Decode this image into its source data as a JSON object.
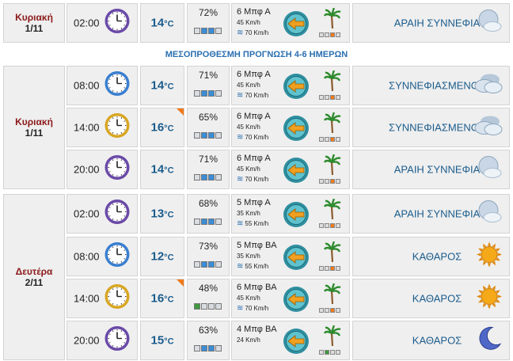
{
  "banner": "ΜΕΣΟΠΡΟΘΕΣΜΗ ΠΡΟΓΝΩΣΗ 4-6 ΗΜΕΡΩΝ",
  "temp_unit": "°C",
  "days": [
    {
      "name": "Κυριακή",
      "date": "1/11"
    },
    {
      "name": "Κυριακή",
      "date": "1/11"
    },
    {
      "name": "Δευτέρα",
      "date": "2/11"
    }
  ],
  "rows": [
    {
      "time": "02:00",
      "temp": "14",
      "hum": "72%",
      "hum_level": 2,
      "beaufort": "6 Μπφ Α",
      "speed": "45 Km/h",
      "gust": "70 Km/h",
      "desc": "ΑΡΑΙΗ ΣΥΝΝΕΦΙΑ",
      "icon": "moon-clouds-icon",
      "hot": false,
      "bf_level": 2,
      "bf_color": "orange"
    },
    {
      "time": "08:00",
      "temp": "14",
      "hum": "71%",
      "hum_level": 2,
      "beaufort": "6 Μπφ Α",
      "speed": "45 Km/h",
      "gust": "70 Km/h",
      "desc": "ΣΥΝΝΕΦΙΑΣΜΕΝΟΣ",
      "icon": "cloudy-icon",
      "hot": false,
      "bf_level": 2,
      "bf_color": "orange"
    },
    {
      "time": "14:00",
      "temp": "16",
      "hum": "65%",
      "hum_level": 2,
      "beaufort": "6 Μπφ Α",
      "speed": "45 Km/h",
      "gust": "70 Km/h",
      "desc": "ΣΥΝΝΕΦΙΑΣΜΕΝΟΣ",
      "icon": "cloudy-icon",
      "hot": true,
      "bf_level": 2,
      "bf_color": "orange"
    },
    {
      "time": "20:00",
      "temp": "14",
      "hum": "71%",
      "hum_level": 2,
      "beaufort": "6 Μπφ Α",
      "speed": "45 Km/h",
      "gust": "70 Km/h",
      "desc": "ΑΡΑΙΗ ΣΥΝΝΕΦΙΑ",
      "icon": "moon-clouds-icon",
      "hot": false,
      "bf_level": 2,
      "bf_color": "orange"
    },
    {
      "time": "02:00",
      "temp": "13",
      "hum": "68%",
      "hum_level": 2,
      "beaufort": "5 Μπφ Α",
      "speed": "35 Km/h",
      "gust": "55 Km/h",
      "desc": "ΑΡΑΙΗ ΣΥΝΝΕΦΙΑ",
      "icon": "moon-clouds-icon",
      "hot": false,
      "bf_level": 2,
      "bf_color": "orange"
    },
    {
      "time": "08:00",
      "temp": "12",
      "hum": "73%",
      "hum_level": 2,
      "beaufort": "5 Μπφ ΒΑ",
      "speed": "35 Km/h",
      "gust": "55 Km/h",
      "desc": "ΚΑΘΑΡΟΣ",
      "icon": "sun-icon",
      "hot": false,
      "bf_level": 2,
      "bf_color": "orange"
    },
    {
      "time": "14:00",
      "temp": "16",
      "hum": "48%",
      "hum_level": 1,
      "beaufort": "6 Μπφ ΒΑ",
      "speed": "45 Km/h",
      "gust": "70 Km/h",
      "desc": "ΚΑΘΑΡΟΣ",
      "icon": "sun-icon",
      "hot": true,
      "bf_level": 2,
      "bf_color": "orange"
    },
    {
      "time": "20:00",
      "temp": "15",
      "hum": "63%",
      "hum_level": 2,
      "beaufort": "4 Μπφ ΒΑ",
      "speed": "24 Km/h",
      "gust": "",
      "desc": "ΚΑΘΑΡΟΣ",
      "icon": "moon-icon",
      "hot": false,
      "bf_level": 1,
      "bf_color": "green"
    }
  ],
  "colors": {
    "day_text": "#8b1a1a",
    "value_blue": "#1b5c8c",
    "accent_orange": "#f07a1a",
    "humidity_blue": "#3a8dd6",
    "humidity_green": "#3f9a3f"
  }
}
